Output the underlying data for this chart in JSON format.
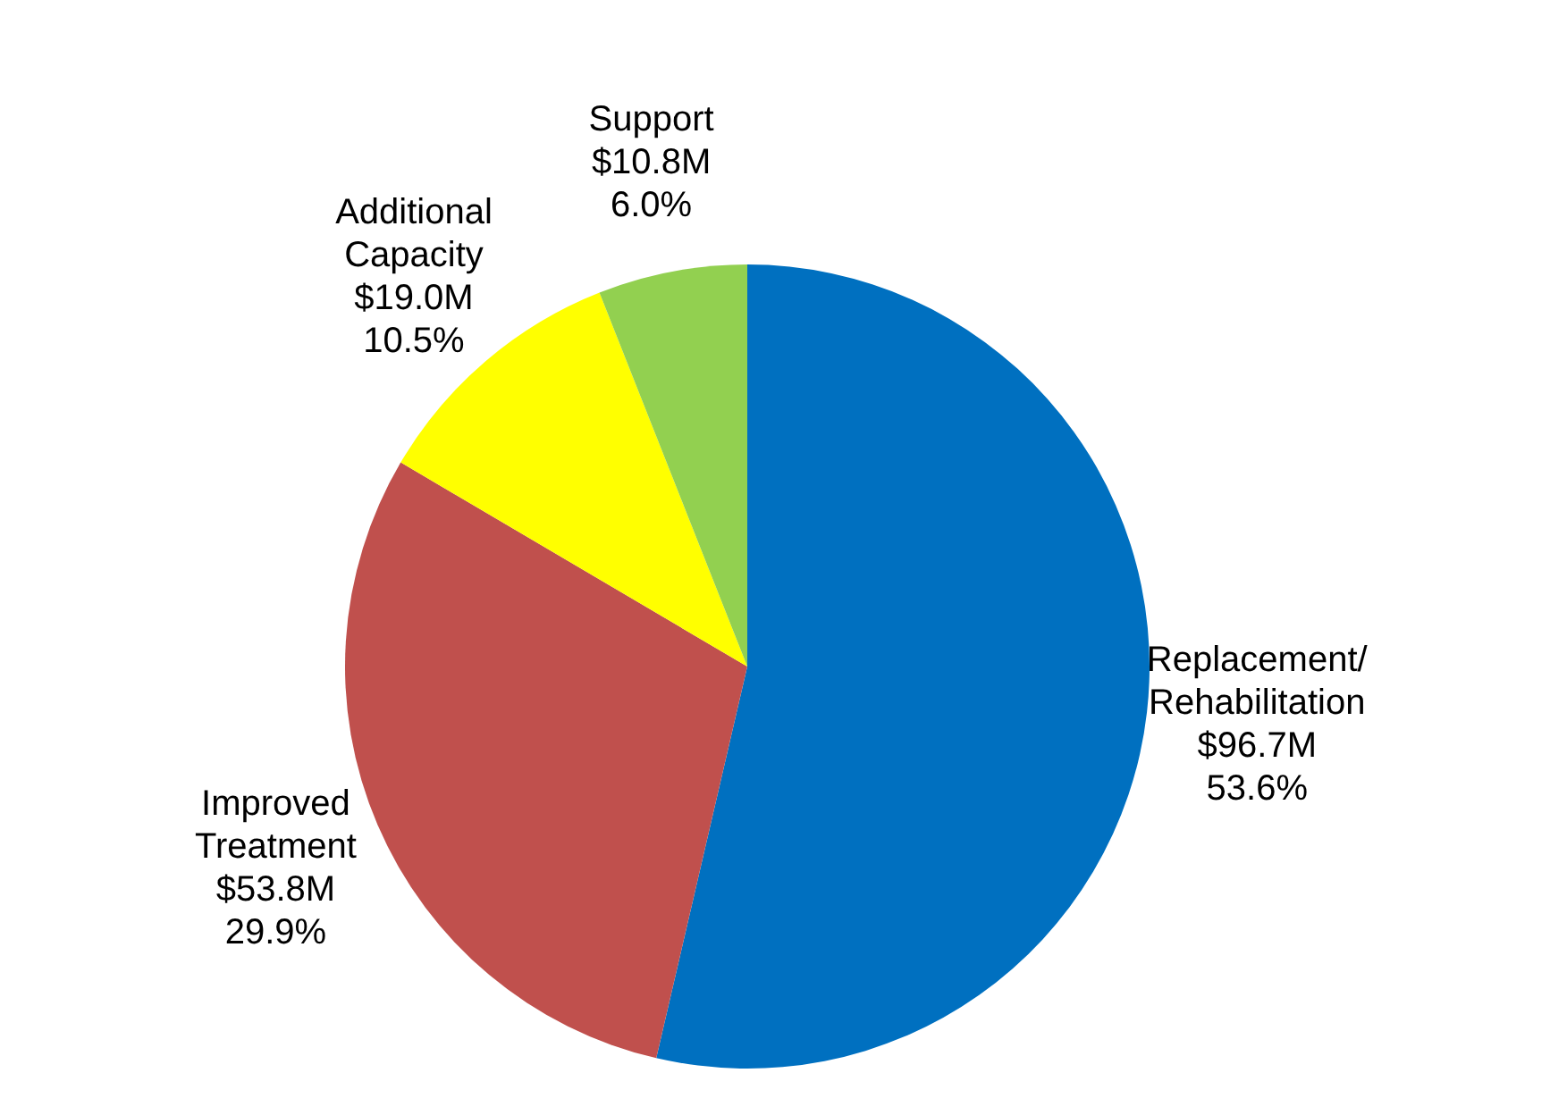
{
  "chart_data": {
    "type": "pie",
    "categories": [
      "Replacement/ Rehabilitation",
      "Improved Treatment",
      "Additional Capacity",
      "Support"
    ],
    "values": [
      96.7,
      53.8,
      19.0,
      10.8
    ],
    "value_labels": [
      "$96.7M",
      "$53.8M",
      "$19.0M",
      "$10.8M"
    ],
    "annotations": [
      "53.6%",
      "29.9%",
      "10.5%",
      "6.0%"
    ],
    "colors": [
      "#0070c0",
      "#c0504d",
      "#ffff00",
      "#92d050"
    ],
    "legend": false
  }
}
